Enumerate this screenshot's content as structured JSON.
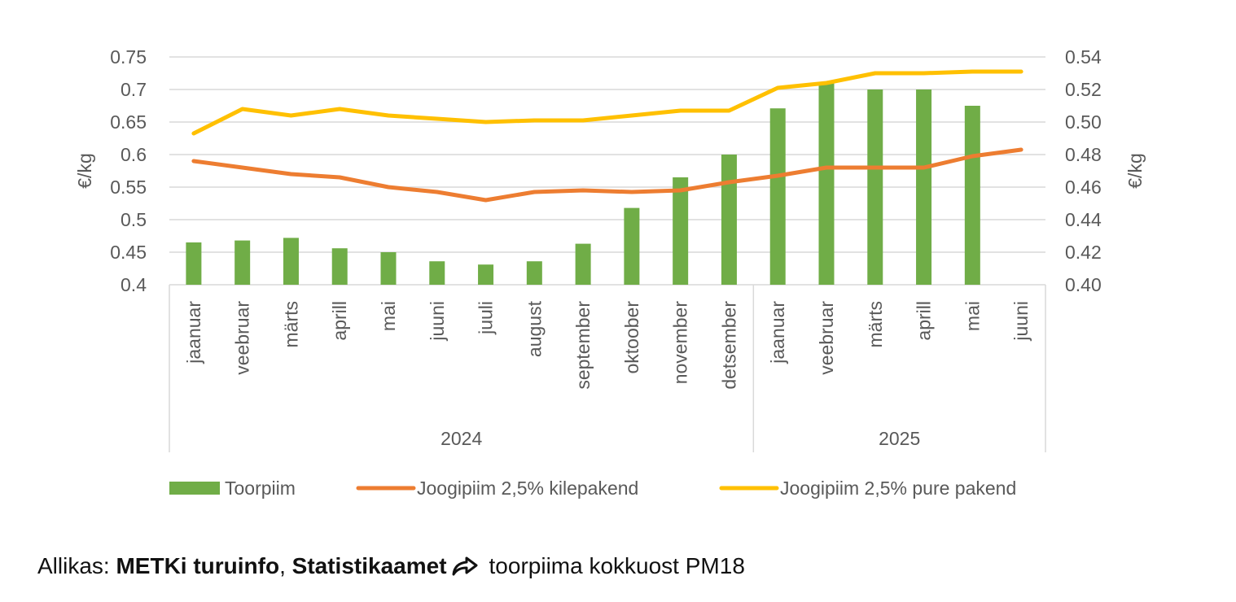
{
  "chart_data": {
    "type": "bar",
    "title": "",
    "ylabel_left": "€/kg",
    "ylabel_right": "€/kg",
    "y_left": {
      "min": 0.4,
      "max": 0.75,
      "step": 0.05,
      "ticks": [
        "0.4",
        "0.45",
        "0.5",
        "0.55",
        "0.6",
        "0.65",
        "0.7",
        "0.75"
      ]
    },
    "y_right": {
      "min": 0.4,
      "max": 0.54,
      "step": 0.02,
      "ticks": [
        "0.40",
        "0.42",
        "0.44",
        "0.46",
        "0.48",
        "0.50",
        "0.52",
        "0.54"
      ]
    },
    "categories": [
      "jaanuar",
      "veebruar",
      "märts",
      "aprill",
      "mai",
      "juuni",
      "juuli",
      "august",
      "september",
      "oktoober",
      "november",
      "detsember",
      "jaanuar",
      "veebruar",
      "märts",
      "aprill",
      "mai",
      "juuni"
    ],
    "groups": [
      {
        "label": "2024",
        "count": 12
      },
      {
        "label": "2025",
        "count": 6
      }
    ],
    "series": [
      {
        "name": "Toorpiim",
        "kind": "bar",
        "axis": "left",
        "color": "#70ad47",
        "values": [
          0.465,
          0.468,
          0.472,
          0.456,
          0.45,
          0.436,
          0.431,
          0.436,
          0.463,
          0.518,
          0.565,
          0.6,
          0.671,
          0.71,
          0.7,
          0.7,
          0.675,
          null
        ]
      },
      {
        "name": "Joogipiim 2,5% kilepakend",
        "kind": "line",
        "axis": "right",
        "color": "#ed7d31",
        "values": [
          0.476,
          0.472,
          0.468,
          0.466,
          0.46,
          0.457,
          0.452,
          0.457,
          0.458,
          0.457,
          0.458,
          0.463,
          0.467,
          0.472,
          0.472,
          0.472,
          0.479,
          0.483
        ]
      },
      {
        "name": "Joogipiim 2,5% pure pakend",
        "kind": "line",
        "axis": "right",
        "color": "#ffc000",
        "values": [
          0.493,
          0.508,
          0.504,
          0.508,
          0.504,
          0.502,
          0.5,
          0.501,
          0.501,
          0.504,
          0.507,
          0.507,
          0.521,
          0.524,
          0.53,
          0.53,
          0.531,
          0.531
        ]
      }
    ],
    "grid": true,
    "legend": "bottom"
  },
  "source": {
    "prefix": "Allikas: ",
    "link1": "METKi turuinfo",
    "separator": ", ",
    "link2": "Statistikaamet",
    "suffix": "toorpiima kokkuost PM18",
    "icon": "share-arrow-icon"
  }
}
